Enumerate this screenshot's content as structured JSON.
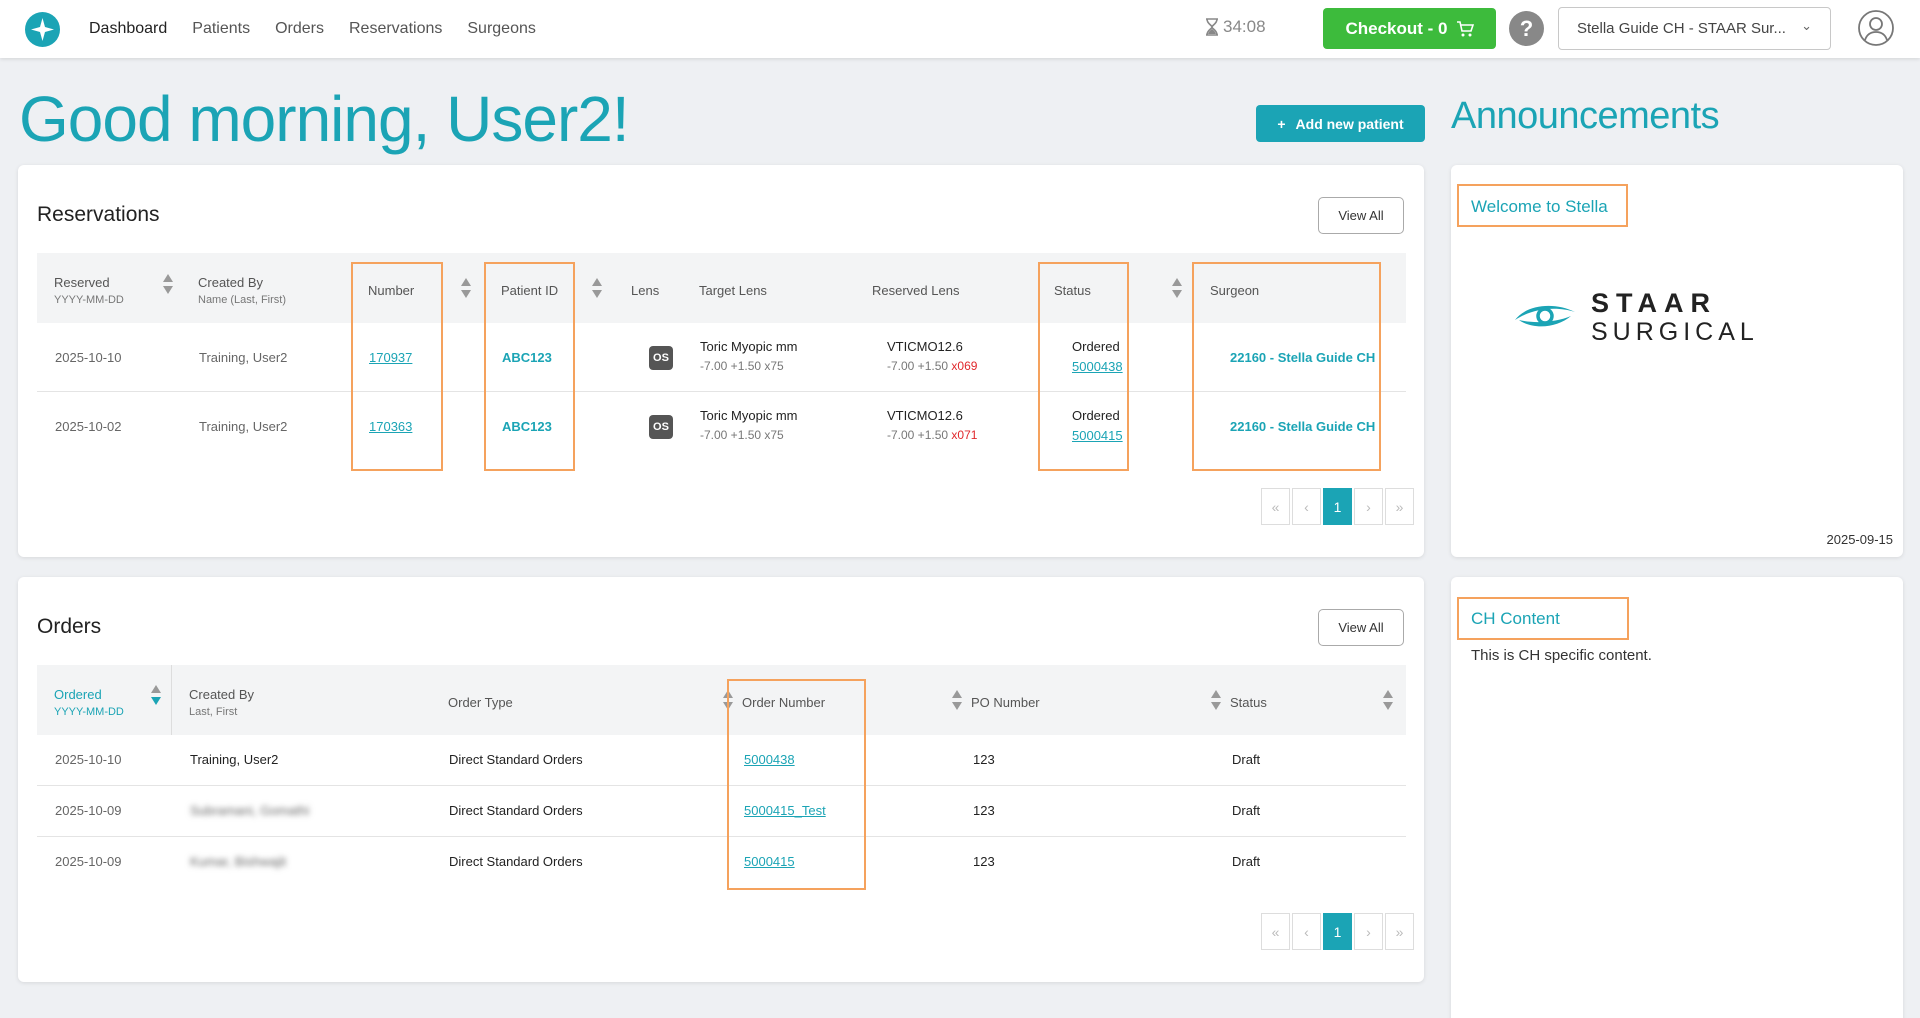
{
  "nav": {
    "links": [
      "Dashboard",
      "Patients",
      "Orders",
      "Reservations",
      "Surgeons"
    ],
    "timer": "34:08",
    "checkout_label": "Checkout - 0",
    "help_label": "?",
    "account": "Stella Guide CH - STAAR Sur..."
  },
  "greeting": "Good morning, User2!",
  "add_patient_label": "Add new patient",
  "reservations": {
    "title": "Reservations",
    "view_all": "View All",
    "headers": {
      "reserved": "Reserved",
      "reserved_sub": "YYYY-MM-DD",
      "created_by": "Created By",
      "created_by_sub": "Name (Last, First)",
      "number": "Number",
      "patient_id": "Patient ID",
      "lens": "Lens",
      "target_lens": "Target Lens",
      "reserved_lens": "Reserved Lens",
      "status": "Status",
      "surgeon": "Surgeon"
    },
    "rows": [
      {
        "reserved": "2025-10-10",
        "created_by": "Training, User2",
        "number": "170937",
        "patient_id": "ABC123",
        "lens": "OS",
        "target_lens_1": "Toric Myopic mm",
        "target_lens_2": "-7.00 +1.50 x75",
        "reserved_lens_1": "VTICMO12.6",
        "reserved_lens_2": "-7.00 +1.50 ",
        "reserved_lens_axis": "x069",
        "status": "Ordered",
        "status_order": "5000438",
        "surgeon": "22160 - Stella Guide CH"
      },
      {
        "reserved": "2025-10-02",
        "created_by": "Training, User2",
        "number": "170363",
        "patient_id": "ABC123",
        "lens": "OS",
        "target_lens_1": "Toric Myopic mm",
        "target_lens_2": "-7.00 +1.50 x75",
        "reserved_lens_1": "VTICMO12.6",
        "reserved_lens_2": "-7.00 +1.50 ",
        "reserved_lens_axis": "x071",
        "status": "Ordered",
        "status_order": "5000415",
        "surgeon": "22160 - Stella Guide CH"
      }
    ],
    "pager": {
      "first": "«",
      "prev": "‹",
      "page": "1",
      "next": "›",
      "last": "»"
    }
  },
  "orders": {
    "title": "Orders",
    "view_all": "View All",
    "headers": {
      "ordered": "Ordered",
      "ordered_sub": "YYYY-MM-DD",
      "created_by": "Created By",
      "created_by_sub": "Last, First",
      "order_type": "Order Type",
      "order_number": "Order Number",
      "po_number": "PO Number",
      "status": "Status"
    },
    "rows": [
      {
        "ordered": "2025-10-10",
        "created_by": "Training, User2",
        "order_type": "Direct Standard Orders",
        "order_number": "5000438",
        "po_number": "123",
        "status": "Draft"
      },
      {
        "ordered": "2025-10-09",
        "created_by": "Subramani, Gomathi",
        "order_type": "Direct Standard Orders",
        "order_number": "5000415_Test",
        "po_number": "123",
        "status": "Draft"
      },
      {
        "ordered": "2025-10-09",
        "created_by": "Kumar, Bishwajit",
        "order_type": "Direct Standard Orders",
        "order_number": "5000415",
        "po_number": "123",
        "status": "Draft"
      }
    ],
    "pager": {
      "first": "«",
      "prev": "‹",
      "page": "1",
      "next": "›",
      "last": "»"
    }
  },
  "announcements": {
    "title": "Announcements",
    "items": [
      {
        "title": "Welcome to Stella",
        "date": "2025-09-15",
        "logo_line1": "STAAR",
        "logo_line2": "SURGICAL"
      },
      {
        "title": "CH Content",
        "body": "This is CH specific content."
      }
    ]
  },
  "colors": {
    "accent": "#1ba4b5",
    "checkout": "#3dbb3c",
    "highlight": "#f5a25d",
    "axis_red": "#e0282c"
  }
}
